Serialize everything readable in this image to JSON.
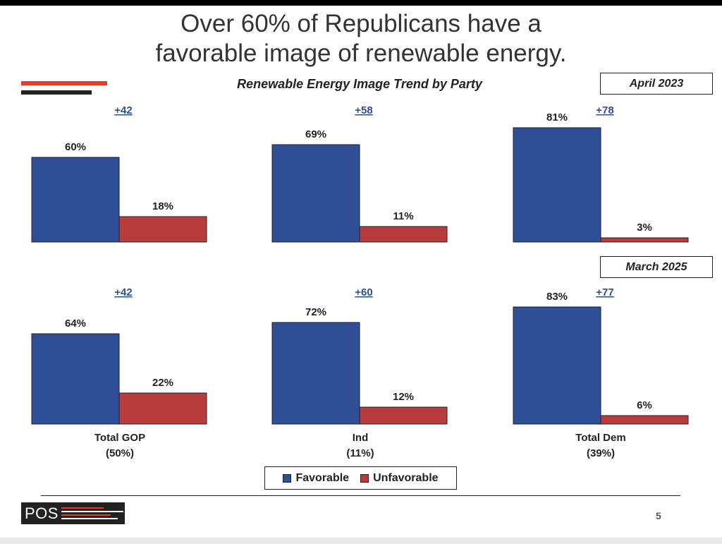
{
  "title": [
    "Over 60% of Republicans have a",
    "favorable image of renewable energy."
  ],
  "subtitle": "Renewable Energy Image Trend by Party",
  "periods": [
    "April 2023",
    "March 2025"
  ],
  "categories": [
    {
      "name": "Total GOP",
      "share": "(50%)"
    },
    {
      "name": "Ind",
      "share": "(11%)"
    },
    {
      "name": "Total Dem",
      "share": "(39%)"
    }
  ],
  "legend": {
    "favorable": "Favorable",
    "unfavorable": "Unfavorable"
  },
  "colors": {
    "favorable": "#2f4f96",
    "unfavorable": "#b83c3c",
    "net": "#2f4f96",
    "text": "#222222"
  },
  "chart_data": [
    {
      "type": "bar",
      "title": "April 2023",
      "categories": [
        "Total GOP",
        "Ind",
        "Total Dem"
      ],
      "series": [
        {
          "name": "Favorable",
          "values": [
            60,
            69,
            81
          ]
        },
        {
          "name": "Unfavorable",
          "values": [
            18,
            11,
            3
          ]
        }
      ],
      "data_labels": [
        [
          "60%",
          "69%",
          "81%"
        ],
        [
          "18%",
          "11%",
          "3%"
        ]
      ],
      "net_labels": [
        "+42",
        "+58",
        "+78"
      ]
    },
    {
      "type": "bar",
      "title": "March 2025",
      "categories": [
        "Total GOP",
        "Ind",
        "Total Dem"
      ],
      "series": [
        {
          "name": "Favorable",
          "values": [
            64,
            72,
            83
          ]
        },
        {
          "name": "Unfavorable",
          "values": [
            22,
            12,
            6
          ]
        }
      ],
      "data_labels": [
        [
          "64%",
          "72%",
          "83%"
        ],
        [
          "22%",
          "12%",
          "6%"
        ]
      ],
      "net_labels": [
        "+42",
        "+60",
        "+77"
      ]
    }
  ],
  "page_number": "5",
  "logo_text": "POS"
}
